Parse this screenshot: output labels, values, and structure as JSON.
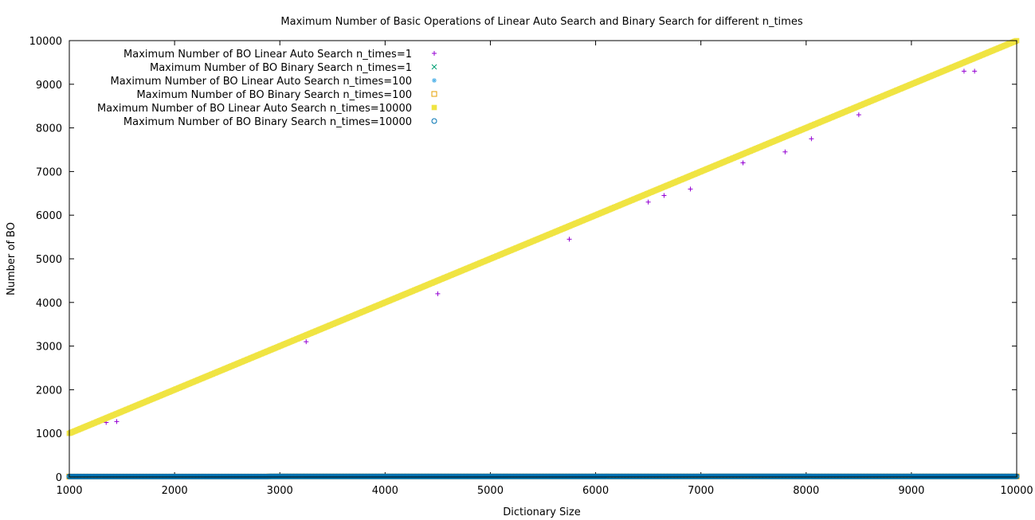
{
  "chart_data": {
    "type": "scatter",
    "title": "Maximum Number of Basic Operations of Linear Auto Search and Binary Search for different n_times",
    "xlabel": "Dictionary Size",
    "ylabel": "Number of BO",
    "xlim": [
      1000,
      10000
    ],
    "ylim": [
      0,
      10000
    ],
    "xticks": [
      1000,
      2000,
      3000,
      4000,
      5000,
      6000,
      7000,
      8000,
      9000,
      10000
    ],
    "yticks": [
      0,
      1000,
      2000,
      3000,
      4000,
      5000,
      6000,
      7000,
      8000,
      9000,
      10000
    ],
    "grid": false,
    "legend_position": "top-left",
    "x_range": {
      "start": 1000,
      "end": 10000,
      "step": 10
    },
    "series": [
      {
        "name": "Maximum Number of BO Linear Auto Search n_times=1",
        "marker": "plus",
        "color": "#9400d3",
        "trend": "linear",
        "y_at_start": 1000,
        "y_at_end": 10000,
        "note_dips": [
          [
            1350,
            1250
          ],
          [
            1450,
            1270
          ],
          [
            3250,
            3100
          ],
          [
            4500,
            4200
          ],
          [
            5750,
            5450
          ],
          [
            6500,
            6300
          ],
          [
            6650,
            6450
          ],
          [
            6900,
            6600
          ],
          [
            7400,
            7200
          ],
          [
            7800,
            7450
          ],
          [
            8050,
            7750
          ],
          [
            8500,
            8300
          ],
          [
            9500,
            9300
          ],
          [
            9600,
            9300
          ]
        ]
      },
      {
        "name": "Maximum Number of BO Binary Search n_times=1",
        "marker": "cross",
        "color": "#009e73",
        "trend": "log2",
        "approx_y": 14
      },
      {
        "name": "Maximum Number of BO Linear Auto Search n_times=100",
        "marker": "star",
        "color": "#56b4e9",
        "trend": "linear",
        "y_at_start": 1000,
        "y_at_end": 10000
      },
      {
        "name": "Maximum Number of BO Binary Search n_times=100",
        "marker": "open-square",
        "color": "#e69f00",
        "trend": "log2",
        "approx_y": 14
      },
      {
        "name": "Maximum Number of BO Linear Auto Search n_times=10000",
        "marker": "filled-square",
        "color": "#f0e442",
        "trend": "linear",
        "y_at_start": 1000,
        "y_at_end": 10000
      },
      {
        "name": "Maximum Number of BO Binary Search n_times=10000",
        "marker": "open-circle",
        "color": "#0072b2",
        "trend": "log2",
        "approx_y": 14
      }
    ]
  }
}
